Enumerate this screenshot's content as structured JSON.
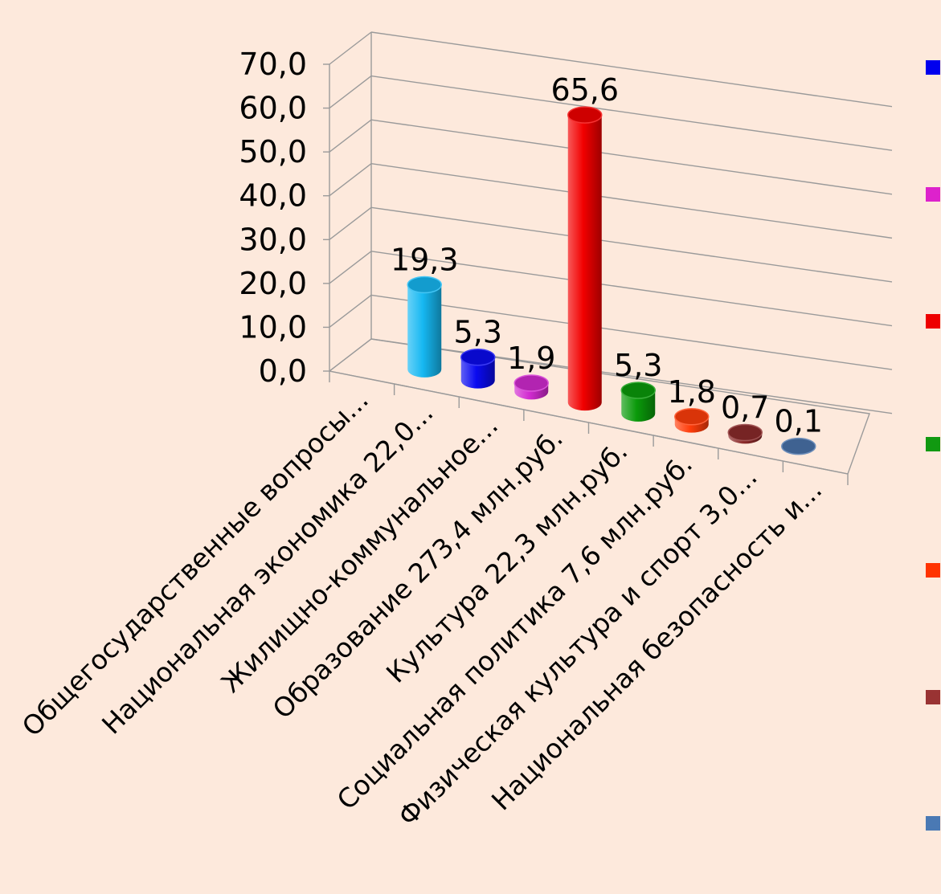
{
  "chart_data": {
    "type": "bar",
    "title": "",
    "xlabel": "",
    "ylabel": "",
    "ylim": [
      0,
      70
    ],
    "yticks": [
      "0,0",
      "10,0",
      "20,0",
      "30,0",
      "40,0",
      "50,0",
      "60,0",
      "70,0"
    ],
    "grid": true,
    "legend_position": "right",
    "categories": [
      "Общегосударственные вопросы...",
      "Национальная экономика 22,0...",
      "Жилищно-коммунальное...",
      "Образование 273,4 млн.руб.",
      "Культура 22,3 млн.руб.",
      "Социальная политика 7,6 млн.руб.",
      "Физическая культура и спорт 3,0...",
      "Национальная безопасность и..."
    ],
    "values": [
      19.3,
      5.3,
      1.9,
      65.6,
      5.3,
      1.8,
      0.7,
      0.1
    ],
    "value_labels": [
      "19,3",
      "5,3",
      "1,9",
      "65,6",
      "5,3",
      "1,8",
      "0,7",
      "0,1"
    ],
    "colors": [
      "#16b8f2",
      "#0a0af0",
      "#d12ad0",
      "#f20000",
      "#0a9a0a",
      "#ff3d0a",
      "#8b2a2a",
      "#4a73aa"
    ],
    "legend_colors": [
      "#0000ee",
      "#dd22cc",
      "#ee0000",
      "#119911",
      "#ff3300",
      "#993333",
      "#4a79b4"
    ]
  }
}
